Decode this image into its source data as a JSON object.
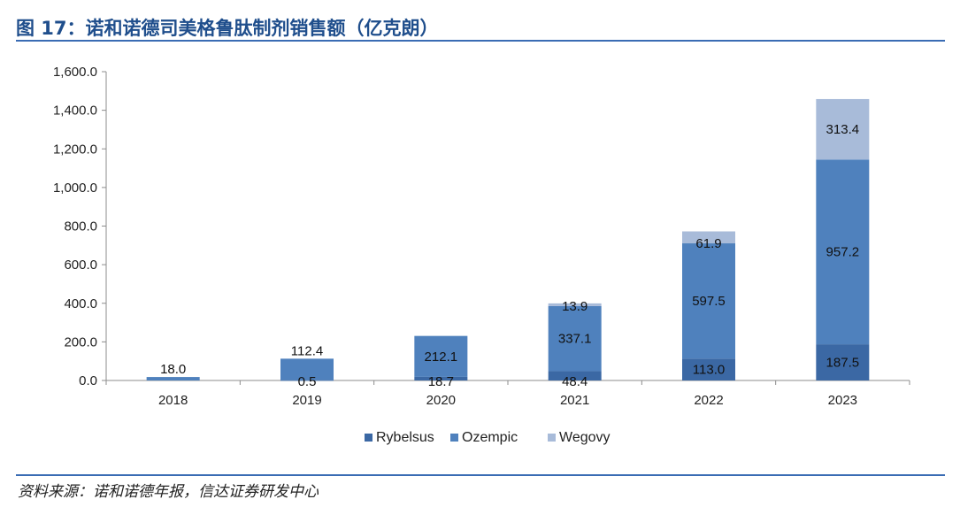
{
  "header": {
    "title": "图 17：诺和诺德司美格鲁肽制剂销售额（亿克朗）"
  },
  "footer": {
    "source": "资料来源：诺和诺德年报，信达证券研发中心"
  },
  "colors": {
    "rybelsus": "#3b68a4",
    "ozempic": "#4f81bd",
    "wegovy": "#a8bbd9",
    "accent": "#1f4e8c",
    "rule": "#3a6cb4"
  },
  "chart_data": {
    "type": "bar",
    "stacked": true,
    "categories": [
      "2018",
      "2019",
      "2020",
      "2021",
      "2022",
      "2023"
    ],
    "series": [
      {
        "name": "Rybelsus",
        "values": [
          0,
          0.5,
          18.7,
          48.4,
          113.0,
          187.5
        ],
        "labels": [
          "",
          "0.5",
          "18.7",
          "48.4",
          "113.0",
          "187.5"
        ]
      },
      {
        "name": "Ozempic",
        "values": [
          18.0,
          112.4,
          212.1,
          337.1,
          597.5,
          957.2
        ],
        "labels": [
          "18.0",
          "112.4",
          "212.1",
          "337.1",
          "597.5",
          "957.2"
        ]
      },
      {
        "name": "Wegovy",
        "values": [
          0,
          0,
          0,
          13.9,
          61.9,
          313.4
        ],
        "labels": [
          "",
          "",
          "",
          "13.9",
          "61.9",
          "313.4"
        ]
      }
    ],
    "y_ticks": [
      "0.0",
      "200.0",
      "400.0",
      "600.0",
      "800.0",
      "1,000.0",
      "1,200.0",
      "1,400.0",
      "1,600.0"
    ],
    "ylim": [
      0,
      1600
    ],
    "grid": false,
    "legend_position": "bottom",
    "title": "",
    "xlabel": "",
    "ylabel": ""
  }
}
